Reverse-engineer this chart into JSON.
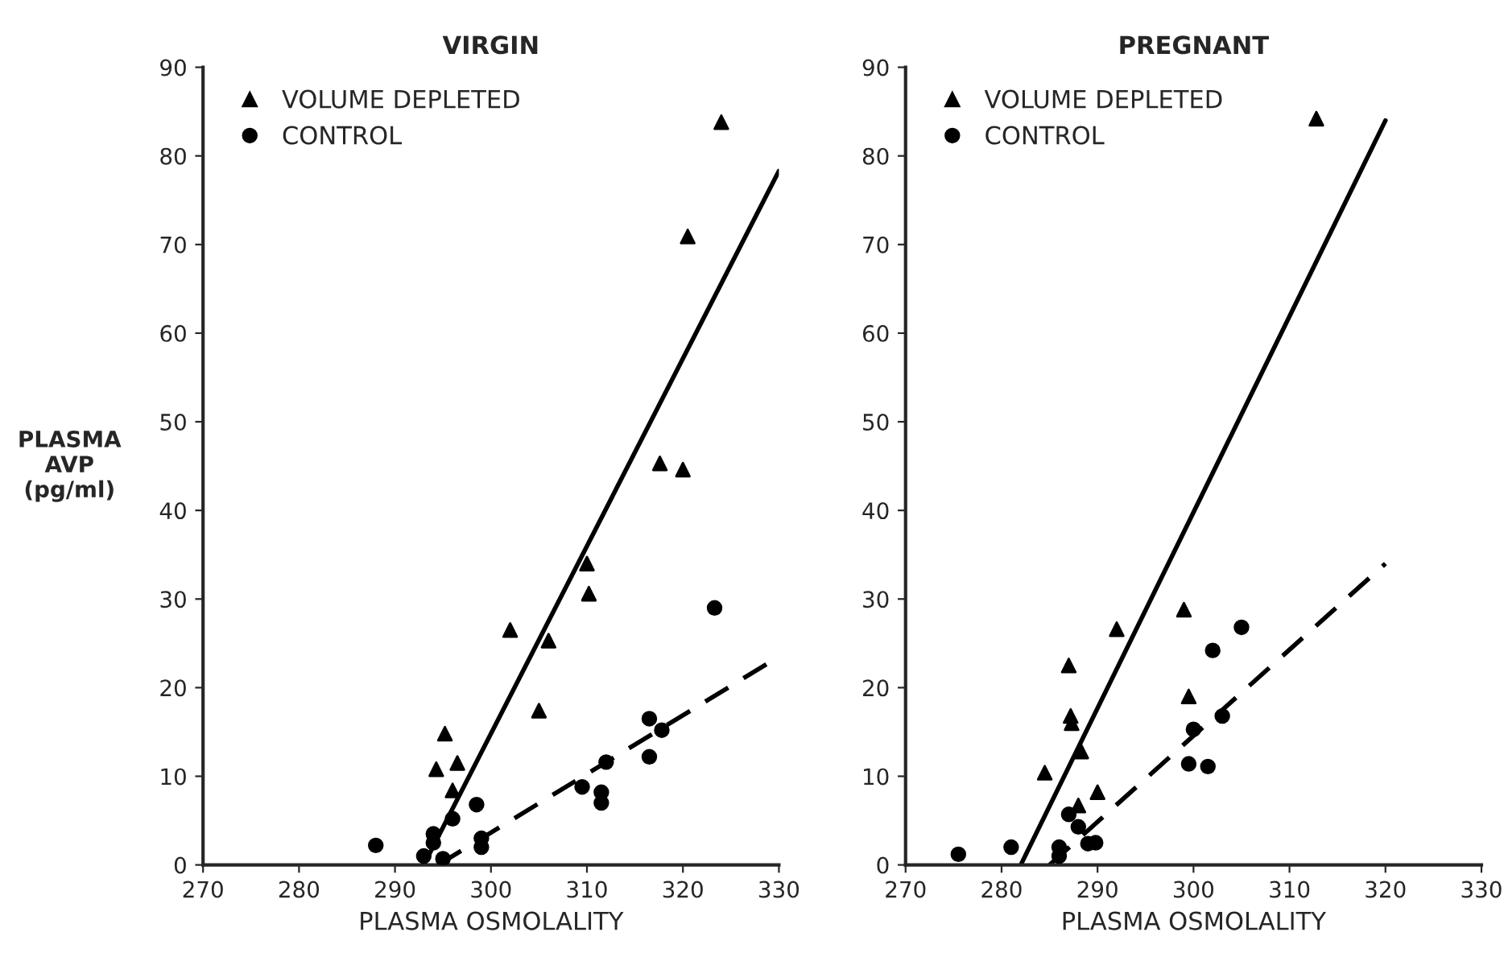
{
  "chart_data": [
    {
      "type": "scatter",
      "title": "VIRGIN",
      "xlabel": "PLASMA OSMOLALITY",
      "ylabel": "PLASMA\nAVP\n(pg/ml)",
      "xlim": [
        270,
        330
      ],
      "ylim": [
        0,
        90
      ],
      "xticks": [
        270,
        280,
        290,
        300,
        310,
        320,
        330
      ],
      "yticks": [
        0,
        10,
        20,
        30,
        40,
        50,
        60,
        70,
        80,
        90
      ],
      "legend": "top left",
      "grid": false,
      "series": [
        {
          "name": "VOLUME DEPLETED",
          "color": "#000000",
          "marker": "triangle",
          "x": [
            294.3,
            295.2,
            296.5,
            296,
            302,
            305,
            306,
            310,
            310.2,
            317.6,
            320,
            320.5,
            324
          ],
          "values": [
            10.8,
            14.8,
            11.5,
            8.4,
            26.5,
            17.4,
            25.3,
            34,
            30.6,
            45.3,
            44.6,
            70.9,
            83.8
          ]
        },
        {
          "name": "CONTROL",
          "color": "#000000",
          "marker": "circle",
          "x": [
            288,
            293,
            294,
            294,
            295,
            296,
            298.5,
            299,
            299,
            309.5,
            311.5,
            311.5,
            312,
            316.5,
            316.5,
            317.8,
            323.3
          ],
          "values": [
            2.2,
            1,
            2.5,
            3.5,
            0.7,
            5.2,
            6.8,
            2,
            3,
            8.8,
            8.2,
            7,
            11.6,
            16.5,
            12.2,
            15.2,
            29
          ]
        },
        {
          "type": "line",
          "color": "#000000",
          "line_style": "solid",
          "x": [
            293,
            330
          ],
          "values": [
            0,
            78.3
          ]
        },
        {
          "type": "line",
          "color": "#000000",
          "line_style": "dashed",
          "x": [
            294.5,
            330
          ],
          "values": [
            0,
            23.5
          ]
        }
      ]
    },
    {
      "type": "scatter",
      "title": "PREGNANT",
      "xlabel": "PLASMA OSMOLALITY",
      "xlim": [
        270,
        330
      ],
      "ylim": [
        0,
        90
      ],
      "xticks": [
        270,
        280,
        290,
        300,
        310,
        320,
        330
      ],
      "yticks": [
        0,
        10,
        20,
        30,
        40,
        50,
        60,
        70,
        80,
        90
      ],
      "legend": "top left",
      "grid": false,
      "series": [
        {
          "name": "VOLUME DEPLETED",
          "color": "#000000",
          "marker": "triangle",
          "x": [
            284.5,
            287,
            287.2,
            287.3,
            288.3,
            288,
            290,
            292,
            299,
            299.5,
            312.8
          ],
          "values": [
            10.4,
            22.5,
            16.8,
            16,
            12.8,
            6.7,
            8.2,
            26.6,
            28.8,
            19,
            84.2
          ]
        },
        {
          "name": "CONTROL",
          "color": "#000000",
          "marker": "circle",
          "x": [
            275.5,
            281,
            286,
            286,
            287,
            288,
            289,
            289.8,
            300,
            299.5,
            301.5,
            303,
            302,
            305
          ],
          "values": [
            1.2,
            2,
            1,
            2,
            5.7,
            4.3,
            2.4,
            2.5,
            15.3,
            11.4,
            11.1,
            16.8,
            24.2,
            26.8
          ]
        },
        {
          "type": "line",
          "color": "#000000",
          "line_style": "solid",
          "x": [
            282,
            320
          ],
          "values": [
            0,
            84
          ]
        },
        {
          "type": "line",
          "color": "#000000",
          "line_style": "dashed",
          "x": [
            285,
            320
          ],
          "values": [
            0,
            34
          ]
        }
      ]
    }
  ]
}
